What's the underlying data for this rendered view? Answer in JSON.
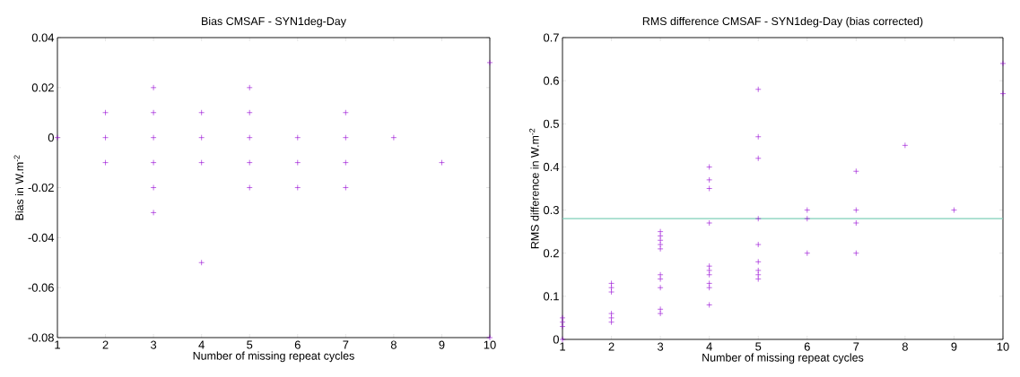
{
  "chart_data": [
    {
      "type": "scatter",
      "title": "Bias CMSAF - SYN1deg-Day",
      "xlabel": "Number of missing repeat cycles",
      "ylabel": "Bias in W.m$^{-2}$",
      "marker": "cross",
      "xlim": [
        1,
        10
      ],
      "xticks": [
        1,
        2,
        3,
        4,
        5,
        6,
        7,
        8,
        9,
        10
      ],
      "ylim": [
        -0.08,
        0.04
      ],
      "yticks": [
        -0.08,
        -0.06,
        -0.04,
        -0.02,
        0,
        0.02,
        0.04
      ],
      "series": [
        {
          "color": "#9400d3",
          "x": [
            1,
            2,
            2,
            2,
            3,
            3,
            3,
            3,
            3,
            3,
            4,
            4,
            4,
            4,
            5,
            5,
            5,
            5,
            5,
            6,
            6,
            6,
            7,
            7,
            7,
            7,
            8,
            9,
            10,
            10
          ],
          "values": [
            0,
            0.01,
            0,
            -0.01,
            0.02,
            0.01,
            0,
            -0.01,
            -0.02,
            -0.03,
            0.01,
            0,
            -0.01,
            -0.05,
            0.02,
            0.01,
            0,
            -0.01,
            -0.02,
            0,
            -0.01,
            -0.02,
            0.01,
            0,
            -0.01,
            -0.02,
            0,
            -0.01,
            0.03,
            -0.08
          ]
        }
      ]
    },
    {
      "type": "scatter",
      "title": "RMS difference CMSAF - SYN1deg-Day (bias corrected)",
      "xlabel": "Number of missing repeat cycles",
      "ylabel": "RMS difference in W.m$^{-2}$",
      "marker": "cross",
      "xlim": [
        1,
        10
      ],
      "xticks": [
        1,
        2,
        3,
        4,
        5,
        6,
        7,
        8,
        9,
        10
      ],
      "ylim": [
        0,
        0.7
      ],
      "yticks": [
        0,
        0.1,
        0.2,
        0.3,
        0.4,
        0.5,
        0.6,
        0.7
      ],
      "ref_lines": [
        {
          "axis": "y",
          "value": 0.28,
          "color": "#7fcfb8"
        }
      ],
      "series": [
        {
          "color": "#9400d3",
          "x": [
            1,
            1,
            1,
            1,
            2,
            2,
            2,
            2,
            2,
            2,
            3,
            3,
            3,
            3,
            3,
            3,
            3,
            3,
            3,
            3,
            4,
            4,
            4,
            4,
            4,
            4,
            4,
            4,
            4,
            4,
            5,
            5,
            5,
            5,
            5,
            5,
            5,
            5,
            5,
            6,
            6,
            6,
            7,
            7,
            7,
            7,
            8,
            9,
            10,
            10
          ],
          "values": [
            0.05,
            0.04,
            0.03,
            0,
            0.13,
            0.12,
            0.11,
            0.06,
            0.05,
            0.04,
            0.25,
            0.24,
            0.23,
            0.22,
            0.21,
            0.15,
            0.14,
            0.12,
            0.07,
            0.06,
            0.4,
            0.37,
            0.35,
            0.27,
            0.17,
            0.16,
            0.15,
            0.13,
            0.12,
            0.08,
            0.58,
            0.47,
            0.42,
            0.28,
            0.22,
            0.18,
            0.16,
            0.15,
            0.14,
            0.3,
            0.28,
            0.2,
            0.39,
            0.3,
            0.27,
            0.2,
            0.45,
            0.3,
            0.64,
            0.57
          ]
        }
      ]
    }
  ]
}
